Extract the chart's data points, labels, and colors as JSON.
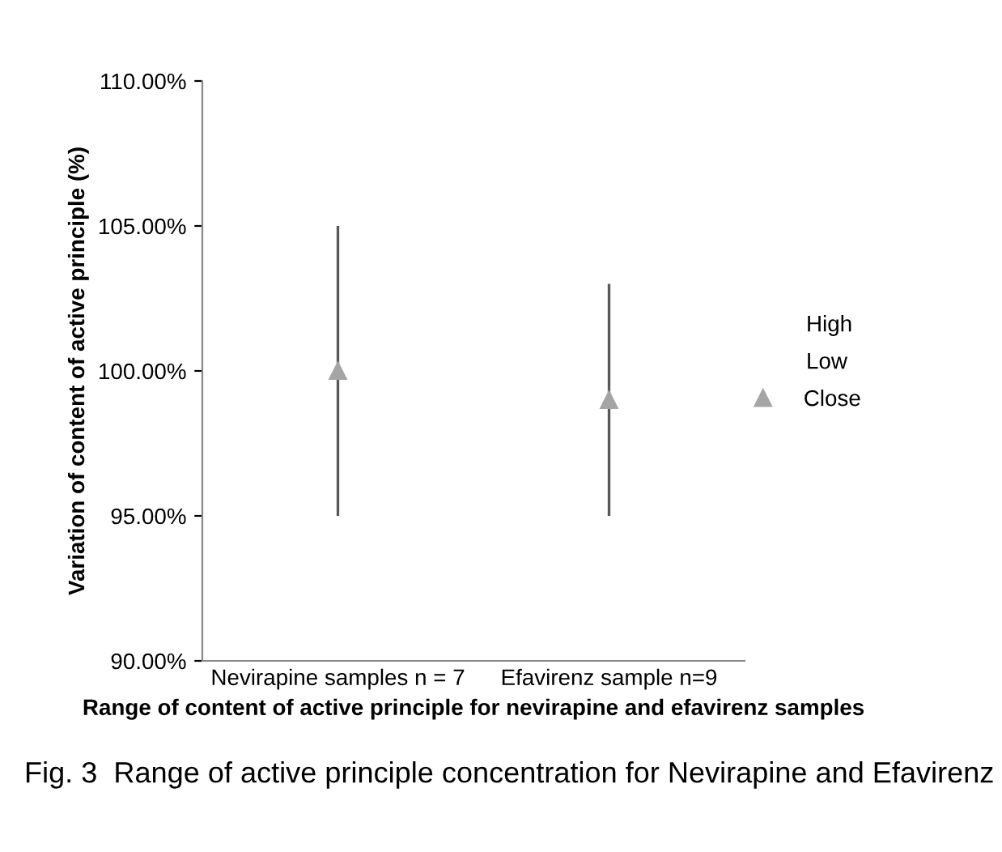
{
  "chart_data": {
    "type": "scatter",
    "xlabel": "Range of content of active principle for nevirapine and efavirenz samples",
    "ylabel": "Variation of content of active principle (%)",
    "categories": [
      "Nevirapine samples n = 7",
      "Efavirenz sample n=9"
    ],
    "series": [
      {
        "name": "Close",
        "color": "#a5a5a5",
        "marker": "triangle",
        "values": [
          100,
          99
        ],
        "errors": [
          [
            95,
            105
          ],
          [
            95,
            103
          ]
        ]
      }
    ],
    "ylim": [
      90,
      110
    ],
    "yticks": [
      {
        "value": 90,
        "label": "90.00%"
      },
      {
        "value": 95,
        "label": "95.00%"
      },
      {
        "value": 100,
        "label": "100.00%"
      },
      {
        "value": 105,
        "label": "105.00%"
      },
      {
        "value": 110,
        "label": "110.00%"
      }
    ],
    "grid": false,
    "legend": "right",
    "annotations": [
      "Fig. 3  Range of active principle concentration for Nevirapine and Efavirenz",
      "High",
      "Low"
    ]
  }
}
